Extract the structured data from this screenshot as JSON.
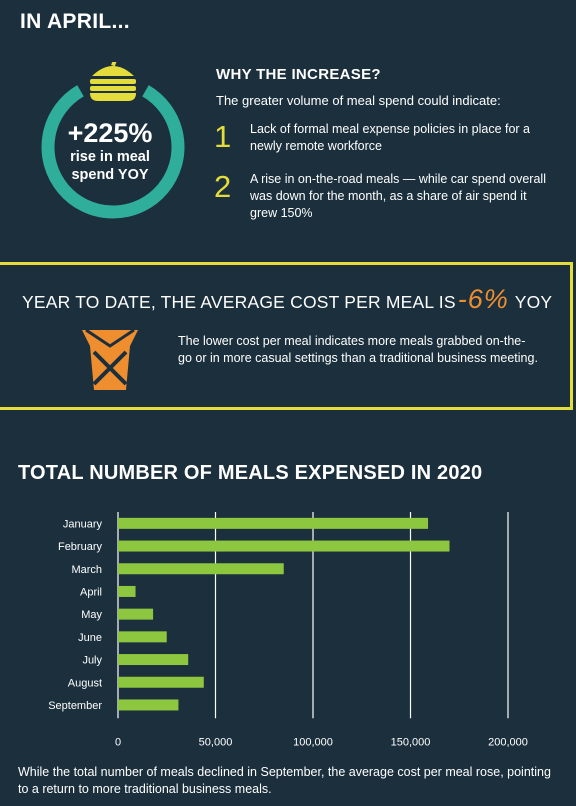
{
  "header": {
    "title": "IN APRIL..."
  },
  "ring": {
    "percent": "+225%",
    "label_line1": "rise in meal",
    "label_line2": "spend YOY"
  },
  "why": {
    "title": "WHY THE INCREASE?",
    "intro": "The greater volume of meal spend could indicate:",
    "reasons": [
      {
        "num": "1",
        "text": "Lack of formal meal expense policies in place for a newly remote workforce"
      },
      {
        "num": "2",
        "text": "A rise in on-the-road meals — while car spend overall was down for the month, as a share of air spend it grew 150%"
      }
    ]
  },
  "ytd": {
    "head_before": "YEAR TO DATE, THE AVERAGE COST PER MEAL IS",
    "percent": "-6%",
    "head_after": "YOY",
    "text": "The lower cost per meal indicates more meals grabbed on-the-go or in more casual settings than a traditional business meeting."
  },
  "chart_data": {
    "type": "bar",
    "orientation": "horizontal",
    "title": "TOTAL NUMBER OF MEALS EXPENSED IN 2020",
    "categories": [
      "January",
      "February",
      "March",
      "April",
      "May",
      "June",
      "July",
      "August",
      "September"
    ],
    "values": [
      159000,
      170000,
      85000,
      9000,
      18000,
      25000,
      36000,
      44000,
      31000
    ],
    "xlim": [
      0,
      200000
    ],
    "xticks": [
      0,
      50000,
      100000,
      150000,
      200000
    ],
    "xtick_labels": [
      "0",
      "50,000",
      "100,000",
      "150,000",
      "200,000"
    ],
    "grid": true,
    "bar_color": "#8dc63f"
  },
  "footnote": "While the total number of meals declined in September, the average cost per meal rose, pointing to a return to more traditional business meals."
}
